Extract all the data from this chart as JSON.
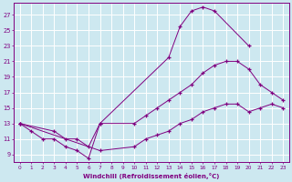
{
  "bg_color": "#cde8f0",
  "line_color": "#800080",
  "grid_color": "#ffffff",
  "xlabel": "Windchill (Refroidissement éolien,°C)",
  "ylabel_ticks": [
    9,
    11,
    13,
    15,
    17,
    19,
    21,
    23,
    25,
    27
  ],
  "xlim": [
    -0.5,
    23.5
  ],
  "ylim": [
    8.0,
    28.5
  ],
  "xticks": [
    0,
    1,
    2,
    3,
    4,
    5,
    6,
    7,
    8,
    9,
    10,
    11,
    12,
    13,
    14,
    15,
    16,
    17,
    18,
    19,
    20,
    21,
    22,
    23
  ],
  "series1_x": [
    0,
    1,
    2,
    3,
    4,
    5,
    6,
    7,
    13,
    14,
    15,
    16,
    17,
    20
  ],
  "series1_y": [
    13,
    12,
    11,
    11,
    10,
    9.5,
    8.5,
    13,
    21.5,
    25.5,
    27.5,
    28,
    27.5,
    23
  ],
  "series2_x": [
    0,
    3,
    4,
    5,
    6,
    7,
    10,
    11,
    12,
    13,
    14,
    15,
    16,
    17,
    18,
    19,
    20,
    21,
    22,
    23
  ],
  "series2_y": [
    13,
    12,
    11,
    11,
    10,
    13,
    13,
    14,
    15,
    16,
    17,
    18,
    19.5,
    20.5,
    21,
    21,
    20,
    18,
    17,
    16
  ],
  "series3_x": [
    0,
    7,
    10,
    11,
    12,
    13,
    14,
    15,
    16,
    17,
    18,
    19,
    20,
    21,
    22,
    23
  ],
  "series3_y": [
    13,
    9.5,
    10,
    11,
    11.5,
    12,
    13,
    13.5,
    14.5,
    15,
    15.5,
    15.5,
    14.5,
    15,
    15.5,
    15
  ]
}
